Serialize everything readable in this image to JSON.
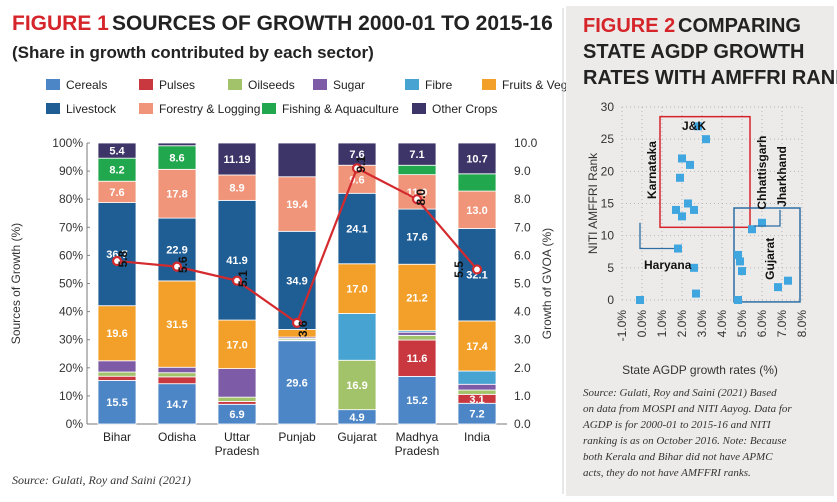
{
  "fig1": {
    "title_prefix": "FIGURE 1",
    "title_rest": "SOURCES OF GROWTH 2000-01 TO 2015-16",
    "subtitle": "(Share in growth contributed by each sector)",
    "source": "Source: Gulati, Roy and Saini (2021)"
  },
  "fig2": {
    "title_line1_prefix": "FIGURE 2",
    "title_line1_rest": "COMPARING",
    "title_line2": "STATE AGDP GROWTH",
    "title_line3": "RATES WITH AMFFRI RANK",
    "note_lines": [
      "Source: Gulati, Roy and Saini (2021) Based",
      "on data from MOSPI and NITI Aayog. Data for",
      "AGDP is for 2000-01 to 2015-16 and NITI",
      "ranking is as on October 2016. Note: Because",
      "both Kerala and Bihar did not have APMC",
      "acts, they do not have AMFFRI ranks."
    ]
  },
  "colors": {
    "accent_red": "#d5242a",
    "Cereals": "#4c86c6",
    "Pulses": "#c9373f",
    "Oilseeds": "#a3c36b",
    "Sugar": "#7e5ba6",
    "Fibre": "#47a4d2",
    "Fruits & Veg": "#f3a02a",
    "Livestock": "#1f5d95",
    "Forestry & Logging": "#f0957a",
    "Fishing & Aquaculture": "#21a74d",
    "Other Crops": "#3d3467",
    "line": "#d32a2e",
    "scatter": "#3fa6e0",
    "box": "#2d6ea4"
  },
  "chart_data": [
    {
      "type": "bar",
      "stacked": true,
      "title": "SOURCES OF GROWTH 2000-01 TO 2015-16",
      "subtitle": "(Share in growth contributed by each sector)",
      "ylabel": "Sources of Growth (%)",
      "y2label": "Growth of GVOA (%)",
      "ylim": [
        0,
        100
      ],
      "y2lim": [
        0,
        10
      ],
      "yticks": [
        "0%",
        "10%",
        "20%",
        "30%",
        "40%",
        "50%",
        "60%",
        "70%",
        "80%",
        "90%",
        "100%"
      ],
      "y2ticks": [
        "0.0",
        "1.0",
        "2.0",
        "3.0",
        "4.0",
        "5.0",
        "6.0",
        "7.0",
        "8.0",
        "9.0",
        "10.0"
      ],
      "categories": [
        "Bihar",
        "Odisha",
        "Uttar\nPradesh",
        "Punjab",
        "Gujarat",
        "Madhya\nPradesh",
        "India"
      ],
      "legend_position": "top",
      "series": [
        {
          "name": "Cereals",
          "values": [
            15.5,
            14.7,
            6.9,
            29.6,
            4.9,
            15.2,
            7.2
          ],
          "labels": [
            "15.5",
            "14.7",
            "6.9",
            "29.6",
            "4.9",
            "15.2",
            "7.2"
          ]
        },
        {
          "name": "Pulses",
          "values": [
            1.5,
            2.5,
            1.0,
            0.3,
            0.0,
            11.6,
            3.1
          ],
          "labels": [
            "",
            "",
            "",
            "",
            "",
            "11.6",
            "3.1"
          ]
        },
        {
          "name": "Oilseeds",
          "values": [
            1.5,
            1.5,
            1.5,
            0.5,
            16.9,
            1.5,
            1.5
          ],
          "labels": [
            "",
            "",
            "",
            "",
            "16.9",
            "",
            ""
          ]
        },
        {
          "name": "Sugar",
          "values": [
            4.0,
            2.0,
            10.0,
            0.5,
            0.0,
            1.0,
            2.0
          ],
          "labels": [
            "",
            "",
            "",
            "",
            "",
            "",
            ""
          ]
        },
        {
          "name": "Fibre",
          "values": [
            0.0,
            0.0,
            0.0,
            0.0,
            16.0,
            0.5,
            4.6
          ],
          "labels": [
            "",
            "",
            "",
            "",
            "",
            "",
            ""
          ]
        },
        {
          "name": "Fruits & Veg",
          "values": [
            19.6,
            31.5,
            17.0,
            2.7,
            17.0,
            21.2,
            17.4
          ],
          "labels": [
            "19.6",
            "31.5",
            "17.0",
            "",
            "17.0",
            "21.2",
            "17.4"
          ]
        },
        {
          "name": "Livestock",
          "values": [
            36.7,
            22.9,
            41.9,
            34.9,
            24.1,
            17.6,
            32.1
          ],
          "labels": [
            "36.7",
            "22.9",
            "41.9",
            "34.9",
            "24.1",
            "17.6",
            "32.1"
          ]
        },
        {
          "name": "Forestry & Logging",
          "values": [
            7.6,
            17.8,
            8.9,
            19.4,
            9.6,
            11.0,
            13.0
          ],
          "labels": [
            "7.6",
            "17.8",
            "8.9",
            "19.4",
            "9.6",
            "11.0",
            "13.0"
          ]
        },
        {
          "name": "Fishing & Aquaculture",
          "values": [
            8.2,
            8.6,
            0.0,
            0.0,
            0.0,
            3.0,
            6.0
          ],
          "labels": [
            "8.2",
            "8.6",
            "",
            "",
            "",
            "",
            ""
          ]
        },
        {
          "name": "Other Crops",
          "values": [
            5.4,
            1.0,
            11.19,
            12.0,
            7.6,
            7.1,
            10.7
          ],
          "labels": [
            "5.4",
            "",
            "11.19",
            "",
            "7.6",
            "7.1",
            "10.7"
          ]
        }
      ],
      "line_series": {
        "name": "Growth of GVOA (%)",
        "axis": "right",
        "values": [
          5.8,
          5.6,
          5.1,
          3.6,
          9.1,
          8.0,
          5.5
        ],
        "labels": [
          "5.8",
          "5.6",
          "5.1",
          "3.6",
          "9.1",
          "8.0",
          "5.5"
        ]
      }
    },
    {
      "type": "scatter",
      "xlabel": "State AGDP growth rates (%)",
      "ylabel": "NITI AMFFRI Rank",
      "xlim": [
        -1.0,
        8.0
      ],
      "ylim": [
        0,
        30
      ],
      "xticks": [
        "-1.0%",
        "0.0%",
        "1.0%",
        "2.0%",
        "3.0%",
        "4.0%",
        "5.0%",
        "6.0%",
        "7.0%",
        "8.0%"
      ],
      "yticks": [
        "0",
        "5",
        "10",
        "15",
        "20",
        "25",
        "30"
      ],
      "points": [
        {
          "x": -0.1,
          "y": 0
        },
        {
          "x": 1.8,
          "y": 8
        },
        {
          "x": 2.6,
          "y": 5
        },
        {
          "x": 2.7,
          "y": 1
        },
        {
          "x": 1.7,
          "y": 14
        },
        {
          "x": 2.0,
          "y": 13
        },
        {
          "x": 2.3,
          "y": 15
        },
        {
          "x": 2.6,
          "y": 14
        },
        {
          "x": 1.9,
          "y": 19
        },
        {
          "x": 2.0,
          "y": 22
        },
        {
          "x": 2.4,
          "y": 21
        },
        {
          "x": 2.8,
          "y": 27
        },
        {
          "x": 3.2,
          "y": 25
        },
        {
          "x": 4.8,
          "y": 0
        },
        {
          "x": 4.8,
          "y": 7
        },
        {
          "x": 4.9,
          "y": 6
        },
        {
          "x": 5.0,
          "y": 4.5
        },
        {
          "x": 5.5,
          "y": 11
        },
        {
          "x": 6.0,
          "y": 12
        },
        {
          "x": 6.8,
          "y": 2
        },
        {
          "x": 7.3,
          "y": 3
        }
      ],
      "annotations": [
        "J&K",
        "Karnataka",
        "Haryana",
        "Chhattisgarh",
        "Jharkhand",
        "Gujarat"
      ]
    }
  ]
}
